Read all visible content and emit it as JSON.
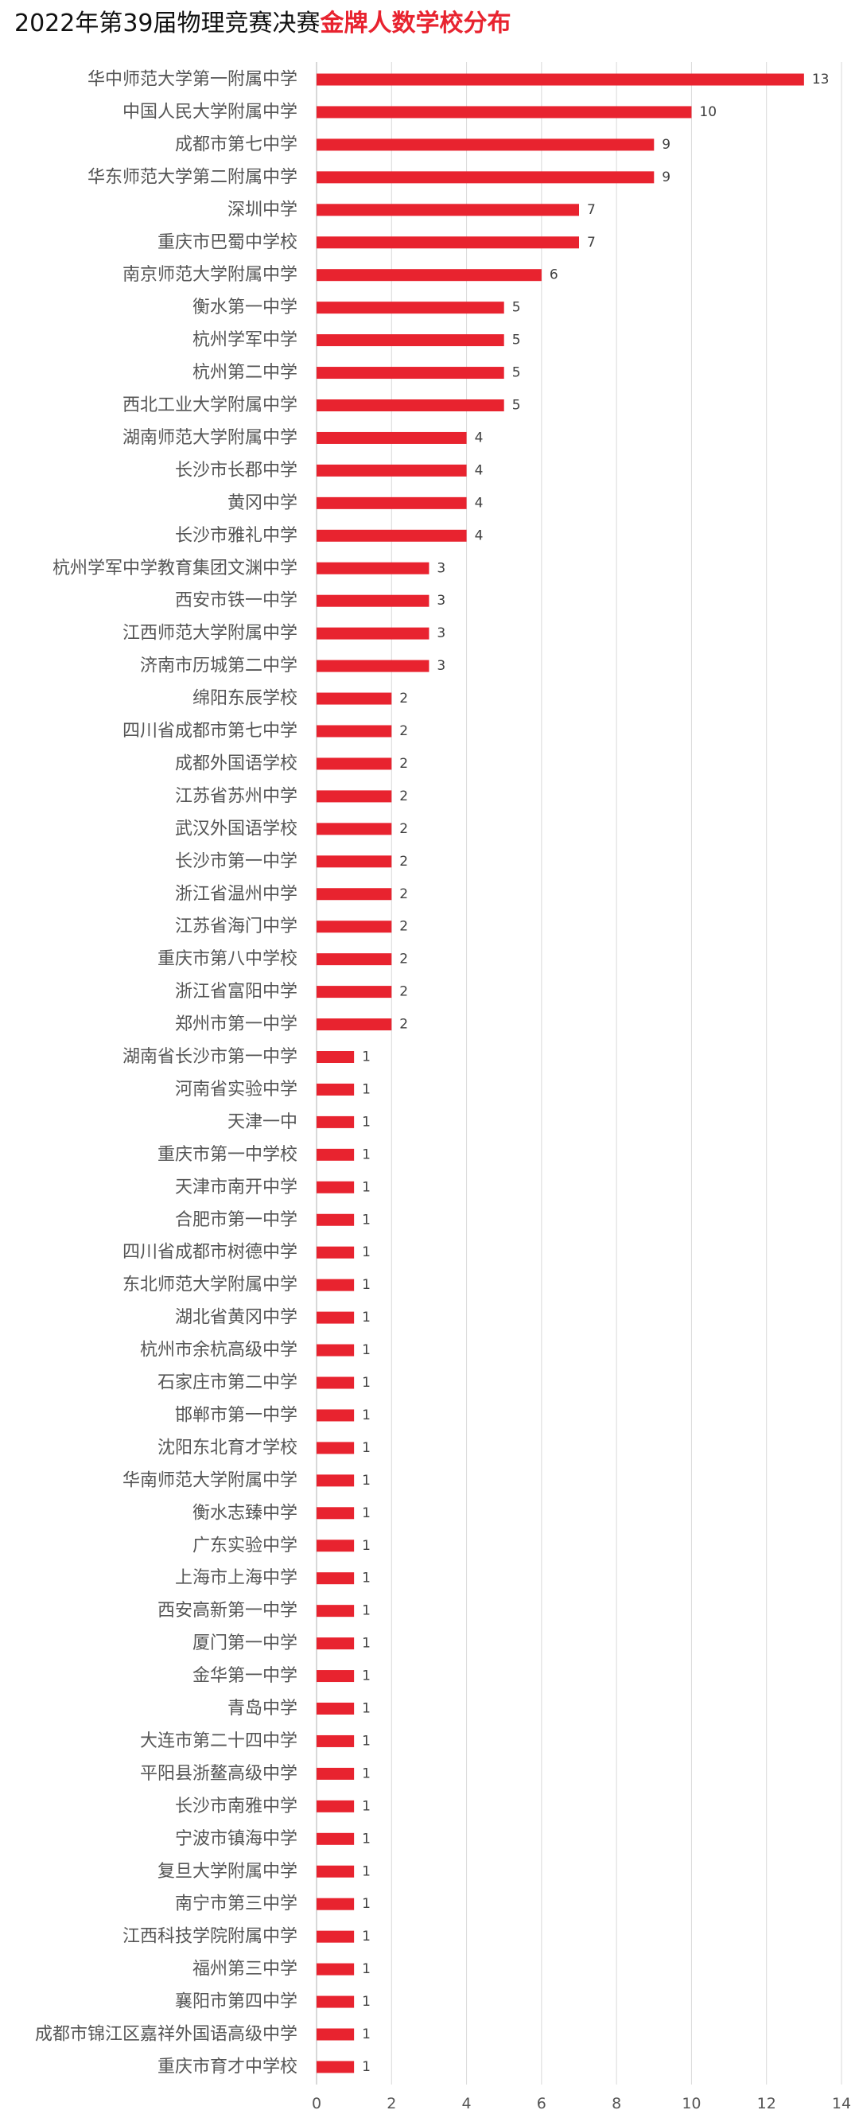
{
  "title": {
    "prefix": "2022年第39届物理竞赛决赛",
    "highlight": "金牌人数学校分布"
  },
  "colors": {
    "bar": "#e8232f",
    "highlight": "#e8232f",
    "label": "#555555",
    "axis": "#bfbfbf",
    "grid": "#d9d9d9"
  },
  "chart_data": {
    "type": "bar",
    "orientation": "horizontal",
    "title": "2022年第39届物理竞赛决赛金牌人数学校分布",
    "xlabel": "",
    "ylabel": "",
    "xlim": [
      0,
      14
    ],
    "x_ticks": [
      0,
      2,
      4,
      6,
      8,
      10,
      12,
      14
    ],
    "grid": "vertical",
    "data_labels": true,
    "categories": [
      "华中师范大学第一附属中学",
      "中国人民大学附属中学",
      "成都市第七中学",
      "华东师范大学第二附属中学",
      "深圳中学",
      "重庆市巴蜀中学校",
      "南京师范大学附属中学",
      "衡水第一中学",
      "杭州学军中学",
      "杭州第二中学",
      "西北工业大学附属中学",
      "湖南师范大学附属中学",
      "长沙市长郡中学",
      "黄冈中学",
      "长沙市雅礼中学",
      "杭州学军中学教育集团文渊中学",
      "西安市铁一中学",
      "江西师范大学附属中学",
      "济南市历城第二中学",
      "绵阳东辰学校",
      "四川省成都市第七中学",
      "成都外国语学校",
      "江苏省苏州中学",
      "武汉外国语学校",
      "长沙市第一中学",
      "浙江省温州中学",
      "江苏省海门中学",
      "重庆市第八中学校",
      "浙江省富阳中学",
      "郑州市第一中学",
      "湖南省长沙市第一中学",
      "河南省实验中学",
      "天津一中",
      "重庆市第一中学校",
      "天津市南开中学",
      "合肥市第一中学",
      "四川省成都市树德中学",
      "东北师范大学附属中学",
      "湖北省黄冈中学",
      "杭州市余杭高级中学",
      "石家庄市第二中学",
      "邯郸市第一中学",
      "沈阳东北育才学校",
      "华南师范大学附属中学",
      "衡水志臻中学",
      "广东实验中学",
      "上海市上海中学",
      "西安高新第一中学",
      "厦门第一中学",
      "金华第一中学",
      "青岛中学",
      "大连市第二十四中学",
      "平阳县浙鳌高级中学",
      "长沙市南雅中学",
      "宁波市镇海中学",
      "复旦大学附属中学",
      "南宁市第三中学",
      "江西科技学院附属中学",
      "福州第三中学",
      "襄阳市第四中学",
      "成都市锦江区嘉祥外国语高级中学",
      "重庆市育才中学校"
    ],
    "values": [
      13,
      10,
      9,
      9,
      7,
      7,
      6,
      5,
      5,
      5,
      5,
      4,
      4,
      4,
      4,
      3,
      3,
      3,
      3,
      2,
      2,
      2,
      2,
      2,
      2,
      2,
      2,
      2,
      2,
      2,
      1,
      1,
      1,
      1,
      1,
      1,
      1,
      1,
      1,
      1,
      1,
      1,
      1,
      1,
      1,
      1,
      1,
      1,
      1,
      1,
      1,
      1,
      1,
      1,
      1,
      1,
      1,
      1,
      1,
      1,
      1,
      1
    ]
  }
}
